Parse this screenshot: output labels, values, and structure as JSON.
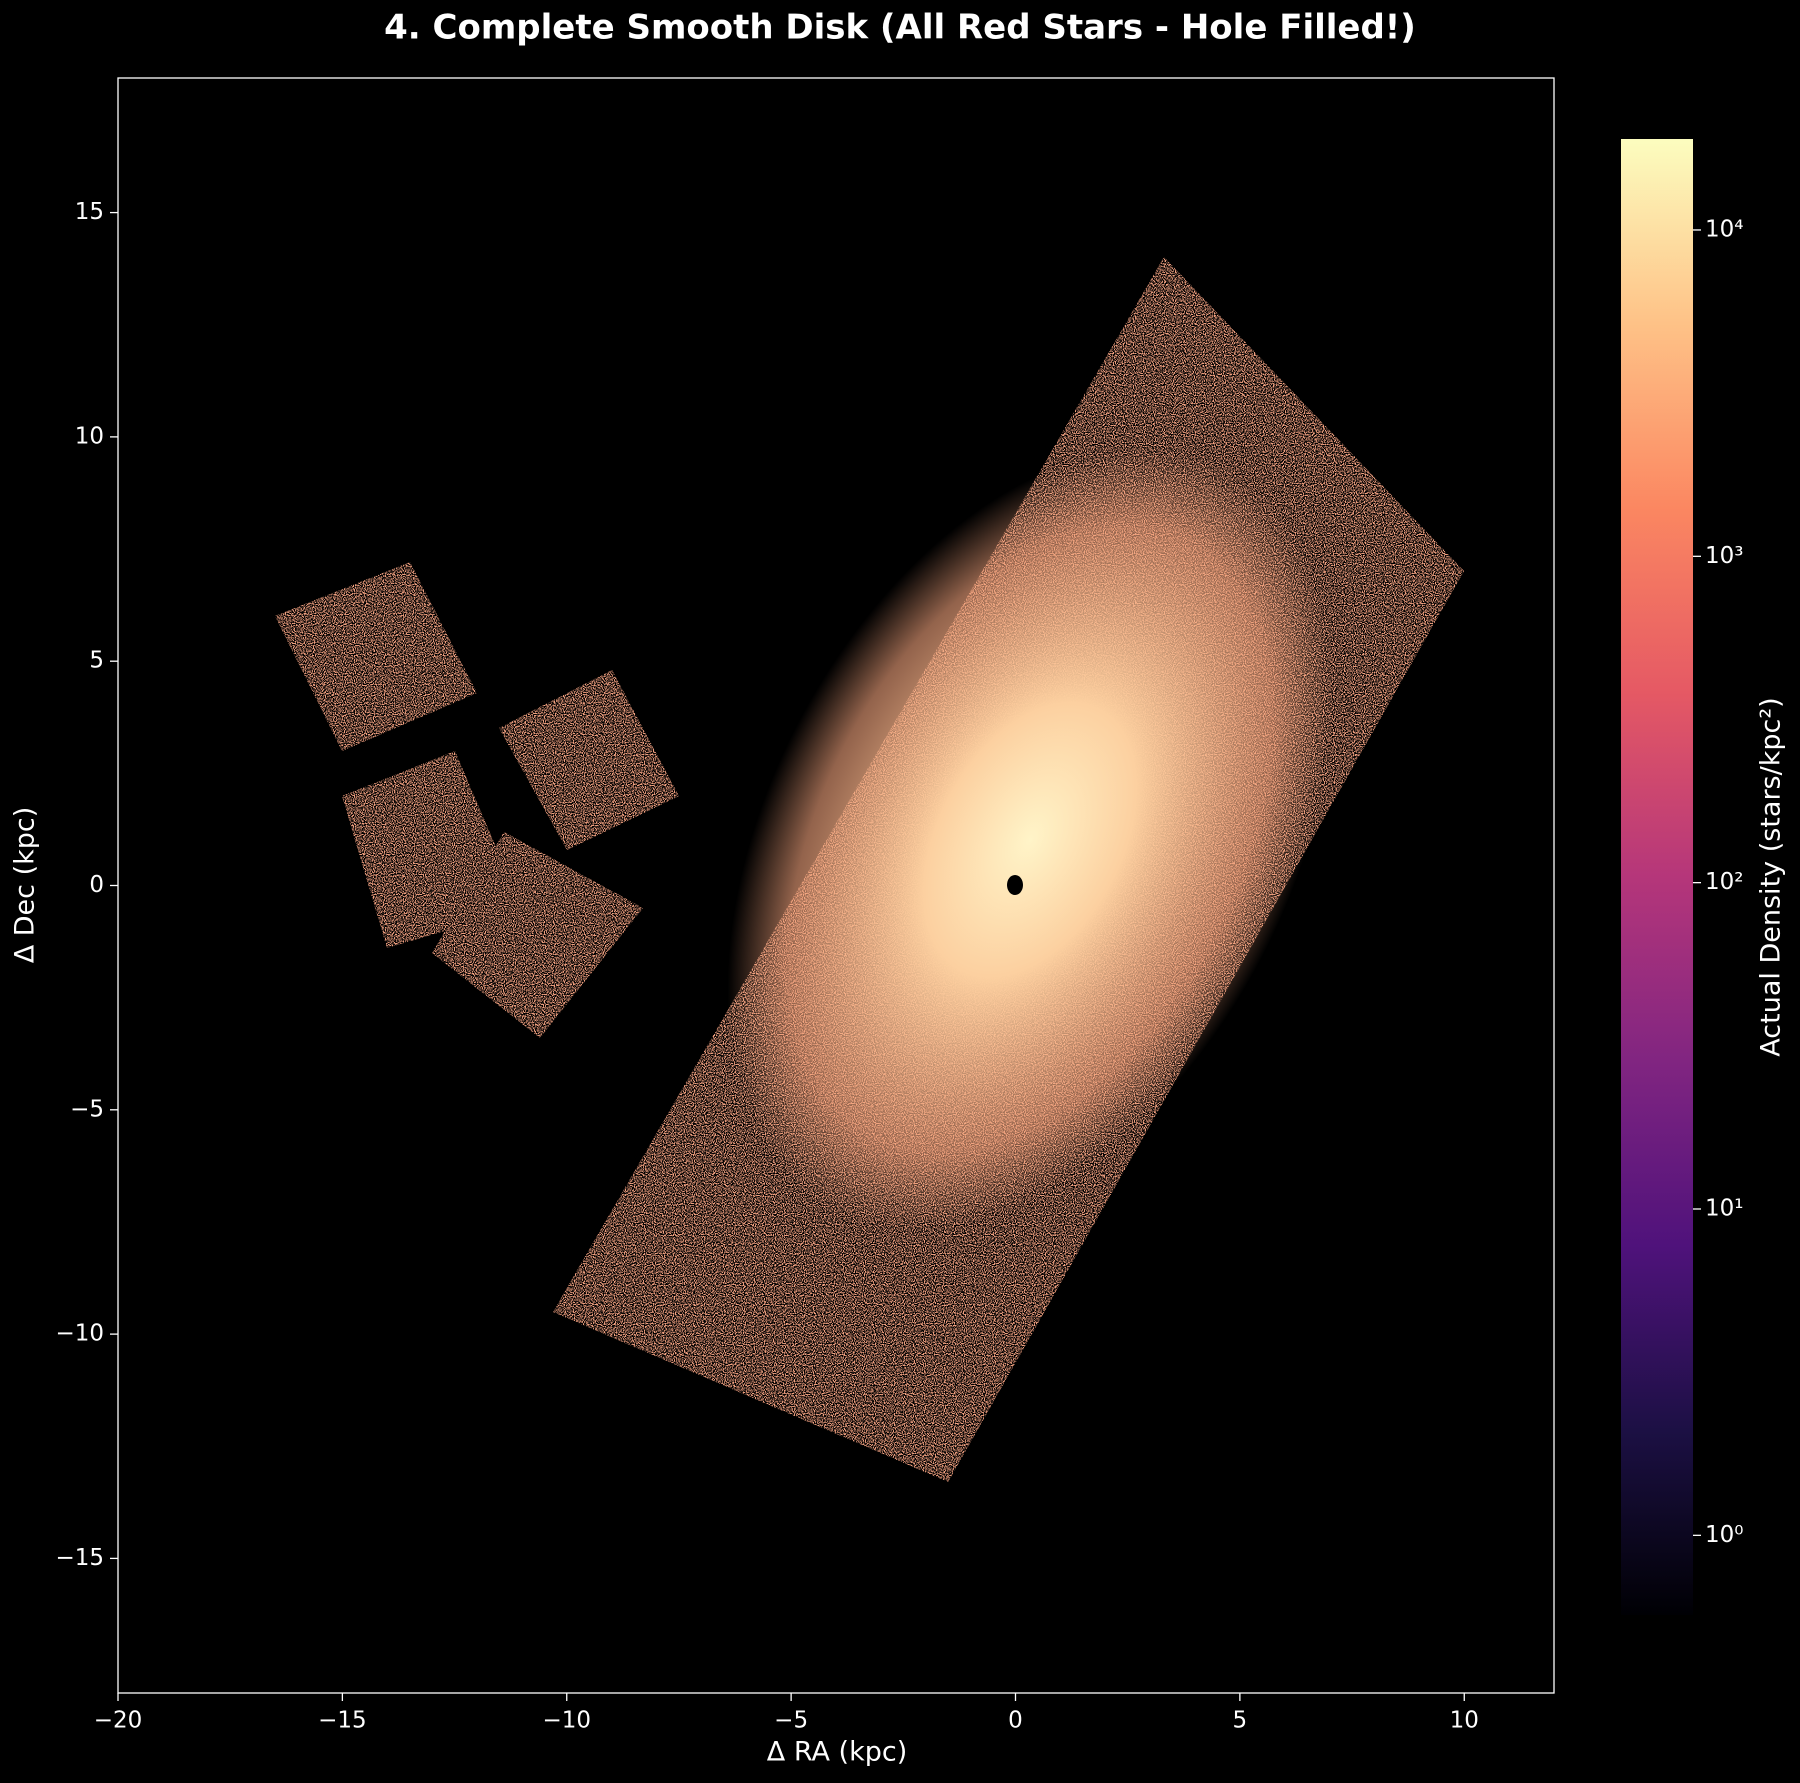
{
  "chart_data": {
    "type": "heatmap",
    "title": "4. Complete Smooth Disk (All Red Stars - Hole Filled!)",
    "xlabel": "Δ RA (kpc)",
    "ylabel": "Δ Dec (kpc)",
    "xlim": [
      -20,
      12
    ],
    "ylim": [
      -18,
      18
    ],
    "xticks": [
      {
        "value": -20,
        "label": "−20"
      },
      {
        "value": -15,
        "label": "−15"
      },
      {
        "value": -10,
        "label": "−10"
      },
      {
        "value": -5,
        "label": "−5"
      },
      0,
      5,
      10
    ],
    "yticks": [
      {
        "value": -15,
        "label": "−15"
      },
      {
        "value": -10,
        "label": "−10"
      },
      {
        "value": -5,
        "label": "−5"
      },
      0,
      5,
      10,
      15
    ],
    "colormap": "magma",
    "colorbar": {
      "label": "Actual Density (stars/kpc²)",
      "scale": "log",
      "lim": [
        0.57,
        19000
      ],
      "ticks": [
        {
          "value": 1,
          "label": "10⁰"
        },
        {
          "value": 10,
          "label": "10¹"
        },
        {
          "value": 100,
          "label": "10²"
        },
        {
          "value": 1000,
          "label": "10³"
        },
        {
          "value": 10000,
          "label": "10⁴"
        }
      ]
    }
  }
}
